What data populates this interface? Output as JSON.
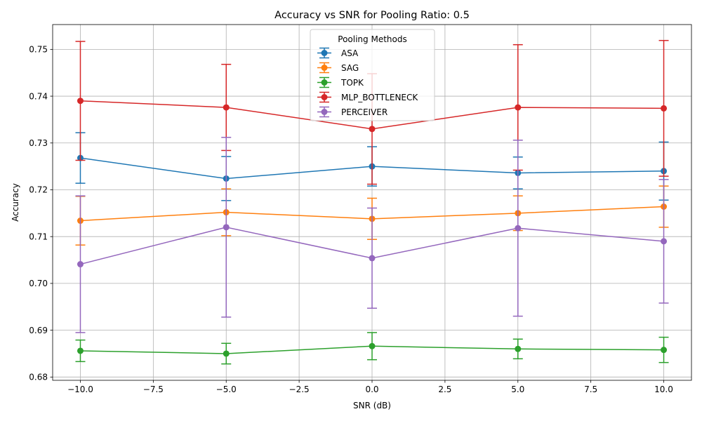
{
  "chart_data": {
    "type": "line",
    "title": "Accuracy vs SNR for Pooling Ratio: 0.5",
    "xlabel": "SNR (dB)",
    "ylabel": "Accuracy",
    "x": [
      -10,
      -5,
      0,
      5,
      10
    ],
    "xlim": [
      -10.95,
      10.95
    ],
    "ylim": [
      0.6793,
      0.7553
    ],
    "xticks": [
      -10,
      -7.5,
      -5,
      -2.5,
      0,
      2.5,
      5,
      7.5,
      10
    ],
    "xtick_labels": [
      "−10.0",
      "−7.5",
      "−5.0",
      "−2.5",
      "0.0",
      "2.5",
      "5.0",
      "7.5",
      "10.0"
    ],
    "yticks": [
      0.68,
      0.69,
      0.7,
      0.71,
      0.72,
      0.73,
      0.74,
      0.75
    ],
    "ytick_labels": [
      "0.68",
      "0.69",
      "0.70",
      "0.71",
      "0.72",
      "0.73",
      "0.74",
      "0.75"
    ],
    "grid": true,
    "legend": {
      "title": "Pooling Methods",
      "position": "upper-center"
    },
    "series": [
      {
        "name": "ASA",
        "color": "#1f77b4",
        "values": [
          0.7268,
          0.7224,
          0.725,
          0.7236,
          0.724
        ],
        "errors": [
          0.0054,
          0.0047,
          0.0042,
          0.0034,
          0.0062
        ]
      },
      {
        "name": "SAG",
        "color": "#ff7f0e",
        "values": [
          0.7134,
          0.7152,
          0.7138,
          0.715,
          0.7164
        ],
        "errors": [
          0.0052,
          0.005,
          0.0044,
          0.0037,
          0.0044
        ]
      },
      {
        "name": "TOPK",
        "color": "#2ca02c",
        "values": [
          0.6856,
          0.685,
          0.6866,
          0.686,
          0.6858
        ],
        "errors": [
          0.0023,
          0.0022,
          0.0029,
          0.0021,
          0.0027
        ]
      },
      {
        "name": "MLP_BOTTLENECK",
        "color": "#d62728",
        "values": [
          0.739,
          0.7376,
          0.733,
          0.7376,
          0.7374
        ],
        "errors": [
          0.0127,
          0.0092,
          0.0118,
          0.0134,
          0.0145
        ]
      },
      {
        "name": "PERCEIVER",
        "color": "#9467bd",
        "values": [
          0.7041,
          0.712,
          0.7054,
          0.7118,
          0.709
        ],
        "errors": [
          0.0146,
          0.0192,
          0.0107,
          0.0188,
          0.0132
        ]
      }
    ]
  }
}
